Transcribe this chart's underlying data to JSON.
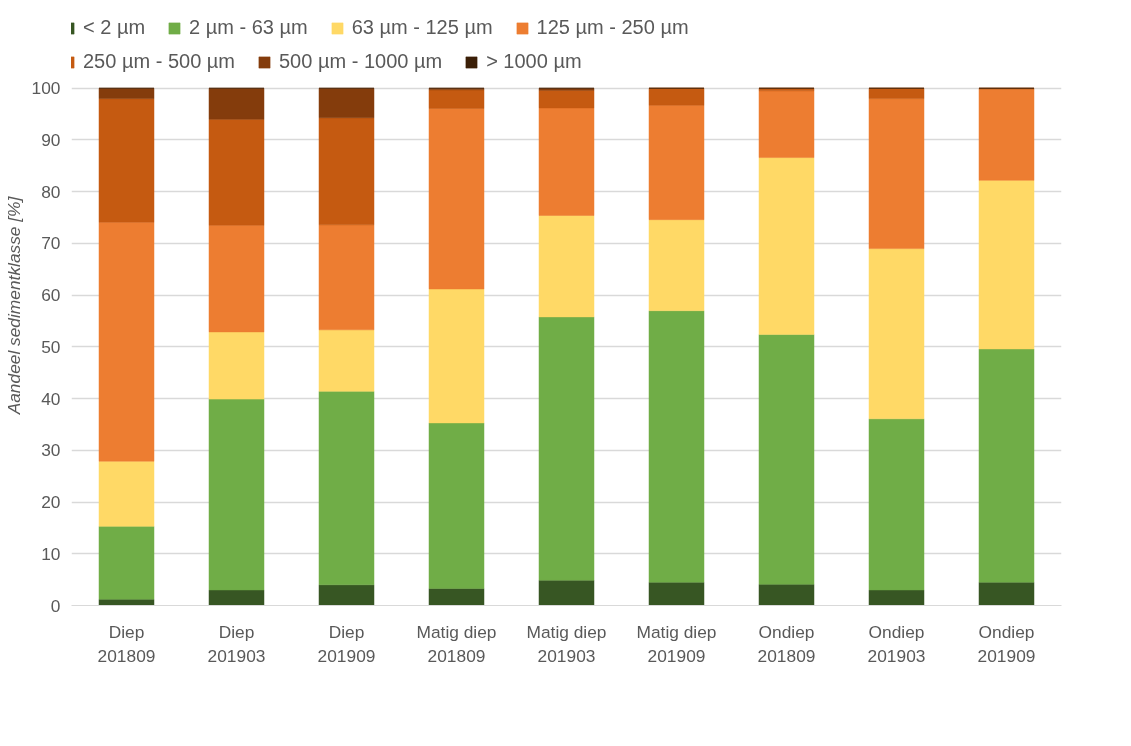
{
  "chart_data": {
    "type": "bar",
    "stacked": true,
    "ylabel": "Aandeel sedimentklasse [%]",
    "categories": [
      "Diep\n201809",
      "Diep\n201903",
      "Diep\n201909",
      "Matig diep\n201809",
      "Matig diep\n201903",
      "Matig diep\n201909",
      "Ondiep\n201809",
      "Ondiep\n201903",
      "Ondiep\n201909"
    ],
    "series": [
      {
        "name": "< 2 µm",
        "color": "#375623",
        "values": [
          1.2,
          3.0,
          4.0,
          3.3,
          4.9,
          4.5,
          4.1,
          3.0,
          4.5
        ]
      },
      {
        "name": "2 µm - 63 µm",
        "color": "#70ad47",
        "values": [
          14.1,
          36.9,
          37.4,
          32.0,
          50.9,
          52.5,
          48.3,
          33.1,
          45.1
        ]
      },
      {
        "name": "63 µm - 125 µm",
        "color": "#ffd966",
        "values": [
          12.6,
          13.0,
          11.9,
          25.9,
          19.6,
          17.6,
          34.2,
          32.9,
          32.6
        ]
      },
      {
        "name": "125 µm - 250 µm",
        "color": "#ed7d31",
        "values": [
          46.2,
          20.6,
          20.3,
          34.9,
          20.8,
          22.1,
          12.9,
          29.0,
          17.6
        ]
      },
      {
        "name": "250 µm - 500 µm",
        "color": "#c55a11",
        "values": [
          23.9,
          20.5,
          20.7,
          3.6,
          3.4,
          3.3,
          0.5,
          2.0,
          0.2
        ]
      },
      {
        "name": "500 µm - 1000 µm",
        "color": "#843c0c",
        "values": [
          2.0,
          6.0,
          5.7,
          0.3,
          0.4,
          0,
          0,
          0,
          0
        ]
      },
      {
        "name": "> 1000 µm",
        "color": "#3b1f07",
        "values": [
          0,
          0,
          0,
          0,
          0,
          0,
          0,
          0,
          0
        ]
      }
    ],
    "ylim": [
      0,
      100
    ],
    "yticks": [
      0,
      10,
      20,
      30,
      40,
      50,
      60,
      70,
      80,
      90,
      100
    ],
    "grid": "y",
    "legend": "top"
  }
}
